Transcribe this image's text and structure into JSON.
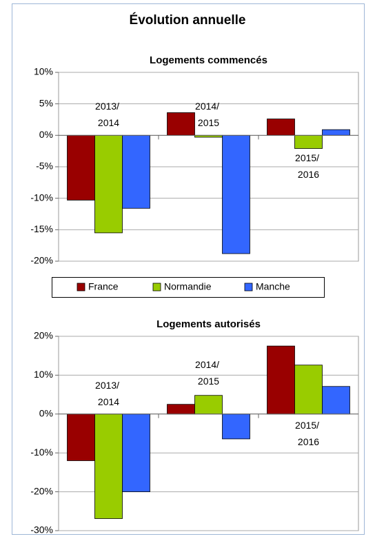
{
  "title": "Évolution annuelle",
  "chart_data": [
    {
      "type": "bar",
      "title": "Logements commencés",
      "categories": [
        "2013/ 2014",
        "2014/ 2015",
        "2015/ 2016"
      ],
      "series": [
        {
          "name": "France",
          "color": "#990000",
          "values": [
            -10.3,
            3.6,
            2.6
          ]
        },
        {
          "name": "Normandie",
          "color": "#99cc00",
          "values": [
            -15.5,
            -0.3,
            -2.1
          ]
        },
        {
          "name": "Manche",
          "color": "#3366ff",
          "values": [
            -11.6,
            -18.8,
            0.9
          ]
        }
      ],
      "ylim": [
        -20,
        10
      ],
      "yticks": [
        {
          "value": -20,
          "label": "-20%"
        },
        {
          "value": -15,
          "label": "-15%"
        },
        {
          "value": -10,
          "label": "-10%"
        },
        {
          "value": -5,
          "label": "-5%"
        },
        {
          "value": 0,
          "label": "0%"
        },
        {
          "value": 5,
          "label": "5%"
        },
        {
          "value": 10,
          "label": "10%"
        }
      ],
      "grid": true,
      "legend": "bottom"
    },
    {
      "type": "bar",
      "title": "Logements autorisés",
      "categories": [
        "2013/ 2014",
        "2014/ 2015",
        "2015/ 2016"
      ],
      "series": [
        {
          "name": "France",
          "color": "#990000",
          "values": [
            -12.0,
            2.5,
            17.5
          ]
        },
        {
          "name": "Normandie",
          "color": "#99cc00",
          "values": [
            -26.9,
            4.8,
            12.6
          ]
        },
        {
          "name": "Manche",
          "color": "#3366ff",
          "values": [
            -20.0,
            -6.4,
            7.1
          ]
        }
      ],
      "ylim": [
        -30,
        20
      ],
      "yticks": [
        {
          "value": -30,
          "label": "-30%"
        },
        {
          "value": -20,
          "label": "-20%"
        },
        {
          "value": -10,
          "label": "-10%"
        },
        {
          "value": 0,
          "label": "0%"
        },
        {
          "value": 10,
          "label": "10%"
        },
        {
          "value": 20,
          "label": "20%"
        }
      ],
      "grid": true
    }
  ]
}
